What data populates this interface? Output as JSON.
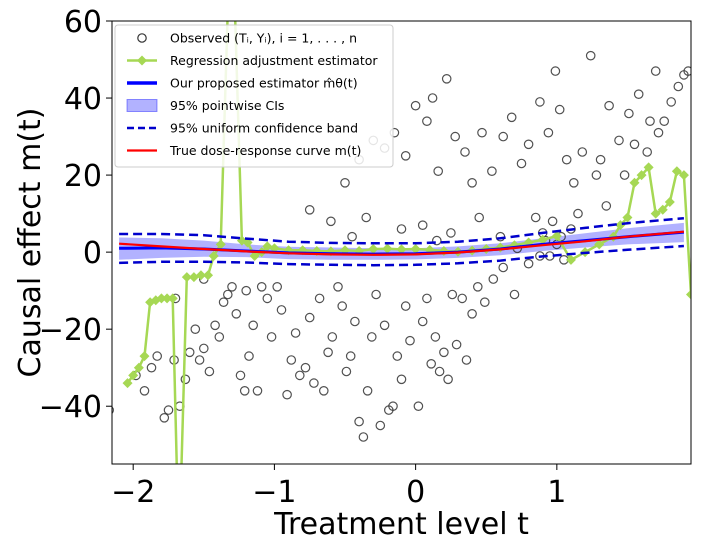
{
  "chart_data": {
    "type": "scatter",
    "xlabel": "Treatment level t",
    "ylabel": "Causal effect m(t)",
    "xlim": [
      -2.15,
      1.95
    ],
    "ylim": [
      -55,
      60
    ],
    "xticks": [
      -2,
      -1,
      0,
      1
    ],
    "xtick_labels": [
      "−2",
      "−1",
      "0",
      "1"
    ],
    "yticks": [
      -40,
      -20,
      0,
      20,
      40,
      60
    ],
    "ytick_labels": [
      "−40",
      "−20",
      "0",
      "20",
      "40",
      "60"
    ],
    "grid": false,
    "legend_position": "top-left",
    "legend": [
      {
        "key": "observed",
        "label": "Observed (Tᵢ, Yᵢ), i = 1, . . . , n",
        "style": "marker",
        "color": "#333333"
      },
      {
        "key": "regression",
        "label": "Regression adjustment estimator",
        "style": "line-diamond",
        "color": "#a6d854"
      },
      {
        "key": "proposed",
        "label": "Our proposed estimator m̂θ(t)",
        "style": "line",
        "color": "#0000ff"
      },
      {
        "key": "ci",
        "label": "95% pointwise CIs",
        "style": "patch",
        "color": "#0000ff"
      },
      {
        "key": "band",
        "label": "95% uniform confidence band",
        "style": "dashed",
        "color": "#0000cc"
      },
      {
        "key": "true",
        "label": "True dose-response curve m(t)",
        "style": "line",
        "color": "#ff0000"
      }
    ],
    "true_curve": {
      "x": [
        -2.1,
        -1.8,
        -1.5,
        -1.2,
        -0.9,
        -0.6,
        -0.3,
        0.0,
        0.3,
        0.6,
        0.9,
        1.2,
        1.5,
        1.9
      ],
      "y": [
        2.2,
        1.5,
        0.8,
        0.2,
        -0.3,
        -0.6,
        -0.7,
        -0.6,
        -0.1,
        0.7,
        1.8,
        2.8,
        4.0,
        5.3
      ]
    },
    "proposed_estimator": {
      "x": [
        -2.1,
        -1.8,
        -1.5,
        -1.2,
        -0.9,
        -0.6,
        -0.3,
        0.0,
        0.3,
        0.6,
        0.9,
        1.2,
        1.5,
        1.9
      ],
      "y": [
        1.0,
        1.1,
        0.8,
        0.3,
        -0.2,
        -0.4,
        -0.5,
        -0.4,
        0.0,
        0.8,
        2.0,
        3.0,
        4.0,
        5.2
      ]
    },
    "pointwise_ci": {
      "x": [
        -2.1,
        -1.8,
        -1.5,
        -1.2,
        -0.9,
        -0.6,
        -0.3,
        0.0,
        0.3,
        0.6,
        0.9,
        1.2,
        1.5,
        1.9
      ],
      "lower": [
        -2.0,
        -1.5,
        -1.2,
        -1.3,
        -1.8,
        -2.0,
        -2.0,
        -1.9,
        -1.5,
        -0.8,
        0.3,
        1.2,
        2.0,
        2.6
      ],
      "upper": [
        3.8,
        3.6,
        3.0,
        2.0,
        1.4,
        1.2,
        1.0,
        1.0,
        1.5,
        2.3,
        3.6,
        4.9,
        6.2,
        7.6
      ]
    },
    "uniform_band": {
      "x": [
        -2.1,
        -1.8,
        -1.5,
        -1.2,
        -0.9,
        -0.6,
        -0.3,
        0.0,
        0.3,
        0.6,
        0.9,
        1.2,
        1.5,
        1.9
      ],
      "lower": [
        -2.8,
        -2.5,
        -2.5,
        -2.7,
        -3.1,
        -3.3,
        -3.4,
        -3.3,
        -2.9,
        -2.2,
        -1.1,
        -0.2,
        0.6,
        1.6
      ],
      "upper": [
        4.7,
        4.7,
        4.4,
        3.5,
        2.7,
        2.4,
        2.3,
        2.3,
        2.7,
        3.6,
        5.0,
        6.3,
        7.5,
        8.8
      ]
    },
    "regression_adjustment": {
      "x": [
        -2.04,
        -2.0,
        -1.96,
        -1.92,
        -1.88,
        -1.84,
        -1.8,
        -1.76,
        -1.72,
        -1.69,
        -1.66,
        -1.62,
        -1.57,
        -1.52,
        -1.47,
        -1.43,
        -1.38,
        -1.33,
        -1.28,
        -1.23,
        -1.19,
        -1.14,
        -1.09,
        -1.05,
        -1.0,
        -0.9,
        -0.8,
        -0.7,
        -0.6,
        -0.5,
        -0.4,
        -0.3,
        -0.2,
        -0.1,
        0.0,
        0.1,
        0.2,
        0.3,
        0.4,
        0.5,
        0.6,
        0.7,
        0.8,
        0.9,
        1.0,
        1.1,
        1.2,
        1.3,
        1.4,
        1.45,
        1.5,
        1.55,
        1.6,
        1.65,
        1.7,
        1.75,
        1.8,
        1.85,
        1.9,
        1.95
      ],
      "y": [
        -34,
        -32,
        -30,
        -27,
        -13,
        -12.5,
        -12,
        -12,
        -12,
        -58,
        -58,
        -6.5,
        -6.5,
        -6,
        -6,
        -1,
        2,
        64,
        64,
        3,
        2.5,
        -1,
        0,
        1.5,
        1,
        0.5,
        0.5,
        0.3,
        0.2,
        0.5,
        0.3,
        0.8,
        0.9,
        0.7,
        0.8,
        0.6,
        0.3,
        0.1,
        0.4,
        0.8,
        1.2,
        1.8,
        2.5,
        3.2,
        4.2,
        -2,
        0,
        2,
        4,
        7,
        9,
        18,
        20,
        22,
        10,
        11,
        13,
        21,
        20,
        -11
      ]
    },
    "observed": [
      {
        "x": -2.17,
        "y": -41
      },
      {
        "x": -1.98,
        "y": -32
      },
      {
        "x": -1.92,
        "y": -36
      },
      {
        "x": -1.87,
        "y": -30
      },
      {
        "x": -1.83,
        "y": -27
      },
      {
        "x": -1.78,
        "y": -43
      },
      {
        "x": -1.75,
        "y": -41
      },
      {
        "x": -1.71,
        "y": -28
      },
      {
        "x": -1.67,
        "y": -40
      },
      {
        "x": -1.63,
        "y": -33
      },
      {
        "x": -1.6,
        "y": -26
      },
      {
        "x": -1.56,
        "y": -20
      },
      {
        "x": -1.53,
        "y": -28
      },
      {
        "x": -1.5,
        "y": -25
      },
      {
        "x": -1.46,
        "y": -31
      },
      {
        "x": -1.42,
        "y": -19
      },
      {
        "x": -1.39,
        "y": -22
      },
      {
        "x": -1.36,
        "y": -13
      },
      {
        "x": -1.33,
        "y": -11
      },
      {
        "x": -1.3,
        "y": -9
      },
      {
        "x": -1.27,
        "y": -16
      },
      {
        "x": -1.24,
        "y": -32
      },
      {
        "x": -1.21,
        "y": -36
      },
      {
        "x": -1.18,
        "y": -27
      },
      {
        "x": -1.15,
        "y": -19
      },
      {
        "x": -1.12,
        "y": -36
      },
      {
        "x": -1.09,
        "y": -9
      },
      {
        "x": -1.05,
        "y": -12
      },
      {
        "x": -1.02,
        "y": -22
      },
      {
        "x": -0.98,
        "y": -9
      },
      {
        "x": -0.95,
        "y": -15
      },
      {
        "x": -0.91,
        "y": -37
      },
      {
        "x": -0.88,
        "y": -28
      },
      {
        "x": -0.85,
        "y": -21
      },
      {
        "x": -0.82,
        "y": -32
      },
      {
        "x": -0.78,
        "y": -30
      },
      {
        "x": -0.75,
        "y": -17
      },
      {
        "x": -0.72,
        "y": -34
      },
      {
        "x": -0.68,
        "y": -12
      },
      {
        "x": -0.65,
        "y": -36
      },
      {
        "x": -0.62,
        "y": -26
      },
      {
        "x": -0.59,
        "y": -22
      },
      {
        "x": -0.55,
        "y": -9
      },
      {
        "x": -0.52,
        "y": -14
      },
      {
        "x": -0.49,
        "y": -31
      },
      {
        "x": -0.46,
        "y": -27
      },
      {
        "x": -0.43,
        "y": -18
      },
      {
        "x": -0.4,
        "y": -44
      },
      {
        "x": -0.37,
        "y": -48
      },
      {
        "x": -0.34,
        "y": -36
      },
      {
        "x": -0.31,
        "y": -22
      },
      {
        "x": -0.28,
        "y": -11
      },
      {
        "x": -0.25,
        "y": -45
      },
      {
        "x": -0.22,
        "y": -19
      },
      {
        "x": -0.19,
        "y": -41
      },
      {
        "x": -0.16,
        "y": -40
      },
      {
        "x": -0.13,
        "y": -27
      },
      {
        "x": -0.1,
        "y": -33
      },
      {
        "x": -0.07,
        "y": -14
      },
      {
        "x": -0.04,
        "y": -23
      },
      {
        "x": 0.02,
        "y": -40
      },
      {
        "x": 0.05,
        "y": -18
      },
      {
        "x": 0.08,
        "y": -12
      },
      {
        "x": 0.11,
        "y": -29
      },
      {
        "x": 0.14,
        "y": -22
      },
      {
        "x": 0.17,
        "y": -31
      },
      {
        "x": 0.2,
        "y": -26
      },
      {
        "x": 0.23,
        "y": -33
      },
      {
        "x": 0.26,
        "y": -11
      },
      {
        "x": 0.29,
        "y": -24
      },
      {
        "x": 0.33,
        "y": -12
      },
      {
        "x": 0.36,
        "y": -28
      },
      {
        "x": 0.4,
        "y": -16
      },
      {
        "x": 0.44,
        "y": -9
      },
      {
        "x": 0.49,
        "y": -13
      },
      {
        "x": 0.55,
        "y": -7
      },
      {
        "x": 0.62,
        "y": -4
      },
      {
        "x": 0.7,
        "y": -11
      },
      {
        "x": -0.75,
        "y": 11
      },
      {
        "x": -0.6,
        "y": 8
      },
      {
        "x": -0.5,
        "y": 18
      },
      {
        "x": -0.4,
        "y": 24
      },
      {
        "x": -0.3,
        "y": 29
      },
      {
        "x": -0.22,
        "y": 27
      },
      {
        "x": -0.15,
        "y": 31
      },
      {
        "x": -0.07,
        "y": 25
      },
      {
        "x": 0.0,
        "y": 38
      },
      {
        "x": 0.08,
        "y": 34
      },
      {
        "x": 0.12,
        "y": 40
      },
      {
        "x": 0.16,
        "y": 21
      },
      {
        "x": 0.22,
        "y": 45
      },
      {
        "x": 0.28,
        "y": 30
      },
      {
        "x": 0.35,
        "y": 26
      },
      {
        "x": 0.4,
        "y": 18
      },
      {
        "x": 0.47,
        "y": 31
      },
      {
        "x": 0.54,
        "y": 21
      },
      {
        "x": 0.62,
        "y": 30
      },
      {
        "x": 0.68,
        "y": 35
      },
      {
        "x": 0.75,
        "y": 23
      },
      {
        "x": 0.8,
        "y": 28
      },
      {
        "x": 0.88,
        "y": 39
      },
      {
        "x": 0.94,
        "y": 31
      },
      {
        "x": 0.99,
        "y": 47
      },
      {
        "x": 1.02,
        "y": 37
      },
      {
        "x": 1.07,
        "y": 24
      },
      {
        "x": 1.12,
        "y": 18
      },
      {
        "x": 1.18,
        "y": 26
      },
      {
        "x": 1.24,
        "y": 51
      },
      {
        "x": 1.31,
        "y": 24
      },
      {
        "x": 1.37,
        "y": 38
      },
      {
        "x": 1.44,
        "y": 29
      },
      {
        "x": 1.51,
        "y": 36
      },
      {
        "x": 1.58,
        "y": 41
      },
      {
        "x": 1.64,
        "y": 26
      },
      {
        "x": 1.7,
        "y": 47
      },
      {
        "x": 1.76,
        "y": 34
      },
      {
        "x": 1.81,
        "y": 39
      },
      {
        "x": 1.86,
        "y": 43
      },
      {
        "x": 1.9,
        "y": 46
      },
      {
        "x": 1.93,
        "y": 47
      },
      {
        "x": 0.85,
        "y": 9
      },
      {
        "x": 0.9,
        "y": 5
      },
      {
        "x": 0.95,
        "y": -1
      },
      {
        "x": 1.0,
        "y": 2
      },
      {
        "x": 1.05,
        "y": -2
      },
      {
        "x": 1.1,
        "y": 6
      },
      {
        "x": 0.88,
        "y": -1
      },
      {
        "x": 0.92,
        "y": 3
      },
      {
        "x": 0.97,
        "y": 8
      },
      {
        "x": 1.03,
        "y": 4
      },
      {
        "x": -0.45,
        "y": 4
      },
      {
        "x": -0.35,
        "y": 9
      },
      {
        "x": -0.1,
        "y": 6
      },
      {
        "x": 0.05,
        "y": 7
      },
      {
        "x": 0.15,
        "y": 3
      },
      {
        "x": 0.25,
        "y": 5
      },
      {
        "x": 0.45,
        "y": 9
      },
      {
        "x": 0.6,
        "y": 4
      },
      {
        "x": 0.72,
        "y": 1
      },
      {
        "x": 0.8,
        "y": -3
      },
      {
        "x": 1.15,
        "y": 10
      },
      {
        "x": 1.28,
        "y": 20
      },
      {
        "x": 1.35,
        "y": 12
      },
      {
        "x": 1.48,
        "y": 20
      },
      {
        "x": 1.55,
        "y": 28
      },
      {
        "x": 1.66,
        "y": 34
      },
      {
        "x": 1.72,
        "y": 31
      },
      {
        "x": -1.7,
        "y": -12
      },
      {
        "x": -1.5,
        "y": -7
      },
      {
        "x": -1.2,
        "y": -10
      }
    ]
  }
}
